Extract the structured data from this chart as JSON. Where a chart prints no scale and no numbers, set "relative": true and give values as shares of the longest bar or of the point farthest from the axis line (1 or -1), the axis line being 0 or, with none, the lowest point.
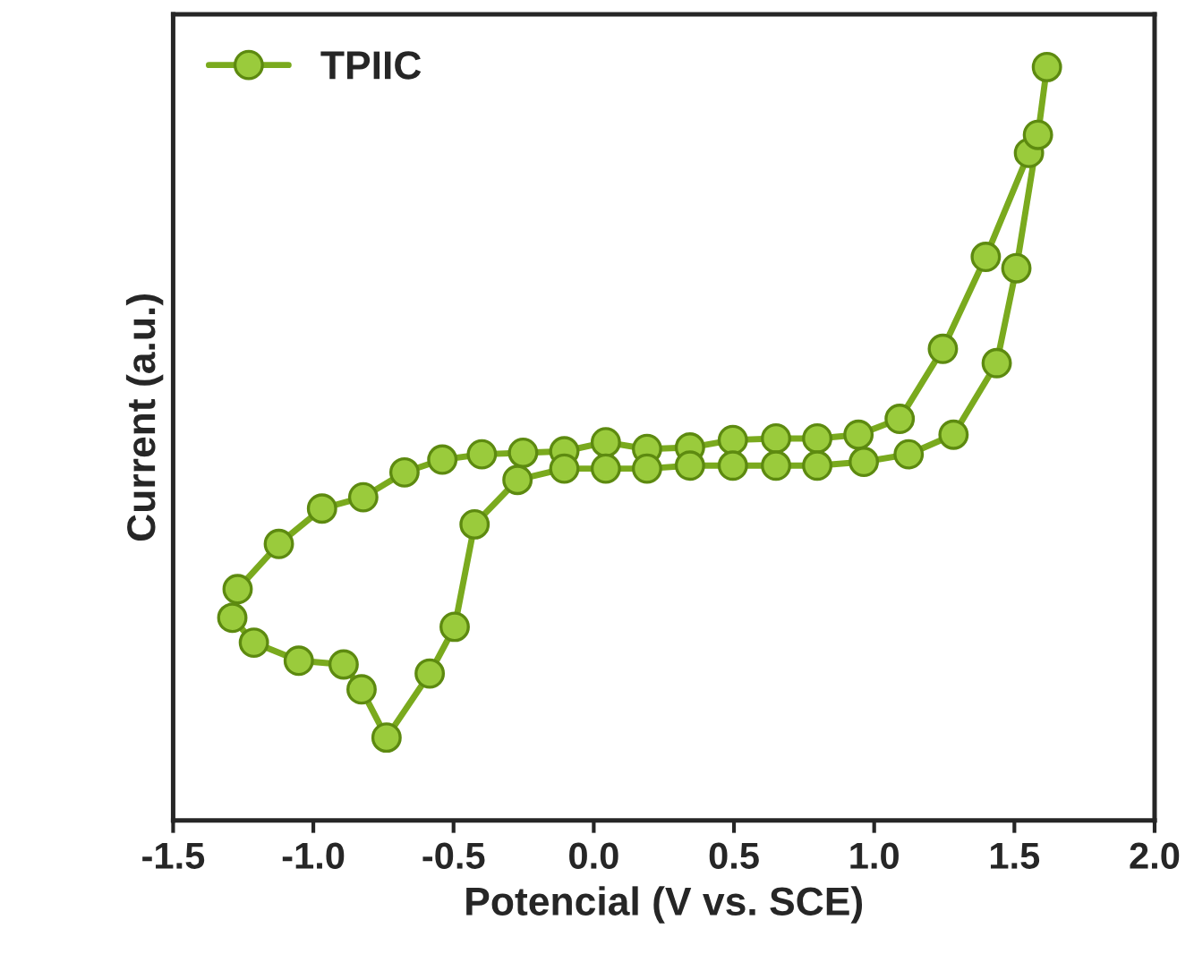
{
  "chart_data": {
    "type": "line",
    "relative": true,
    "xlabel": "Potencial (V vs. SCE)",
    "ylabel": "Current (a.u.)",
    "xlim": [
      -1.5,
      2.0
    ],
    "xticks": [
      -1.5,
      {
        "value": -1,
        "label": "-1.0"
      },
      -0.5,
      {
        "value": 0,
        "label": "0.0"
      },
      0.5,
      {
        "value": 1,
        "label": "1.0"
      },
      1.5,
      {
        "value": 2,
        "label": "2.0"
      }
    ],
    "tick_labels": "x",
    "grid": false,
    "legend": "top left",
    "marker": "circle",
    "line_style": "solid",
    "series": [
      {
        "name": "TPIIC",
        "color": "#7aaa1e",
        "x": [
          1.552,
          1.398,
          1.245,
          1.091,
          0.944,
          0.797,
          0.65,
          0.496,
          0.343,
          0.19,
          0.043,
          -0.105,
          -0.252,
          -0.399,
          -0.54,
          -0.675,
          -0.822,
          -0.969,
          -1.123,
          -1.27,
          -1.289,
          -1.212,
          -1.052,
          -0.892,
          -0.828,
          -0.739,
          -0.585,
          -0.496,
          -0.425,
          -0.272,
          -0.105,
          0.043,
          0.19,
          0.343,
          0.496,
          0.65,
          0.797,
          0.963,
          1.123,
          1.283,
          1.437,
          1.507,
          1.584,
          1.616
        ],
        "values": [
          0.886,
          0.748,
          0.626,
          0.533,
          0.512,
          0.507,
          0.507,
          0.505,
          0.495,
          0.493,
          0.502,
          0.49,
          0.488,
          0.486,
          0.479,
          0.462,
          0.429,
          0.414,
          0.367,
          0.307,
          0.269,
          0.236,
          0.212,
          0.207,
          0.174,
          0.11,
          0.195,
          0.257,
          0.393,
          0.452,
          0.467,
          0.467,
          0.467,
          0.471,
          0.471,
          0.471,
          0.471,
          0.476,
          0.486,
          0.512,
          0.607,
          0.733,
          0.91,
          1.0
        ]
      }
    ]
  }
}
